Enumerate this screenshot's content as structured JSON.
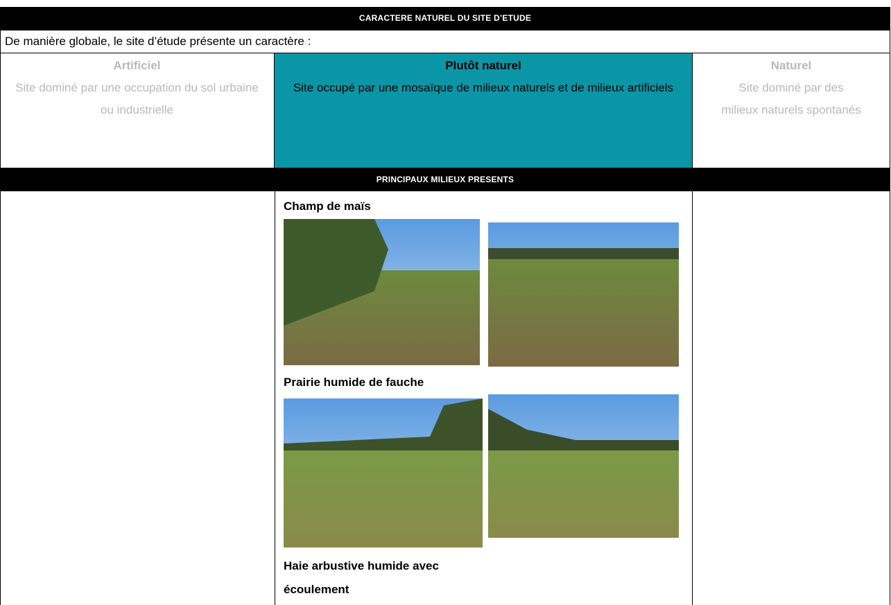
{
  "header": {
    "title": "CARACTERE NATUREL DU SITE D’ETUDE"
  },
  "intro": "De manière globale, le site d’étude présente un caractère :",
  "columns": [
    {
      "title": "Artificiel",
      "description": "Site dominé par une occupation du sol urbaine ou industrielle"
    },
    {
      "title": "Plutôt naturel",
      "description": "Site occupé par une mosaïque de milieux naturels et de milieux artificiels"
    },
    {
      "title": "Naturel",
      "description": "Site dominé par des milieux naturels spontanés"
    }
  ],
  "section_title": "PRINCIPAUX MILIEUX PRESENTS",
  "habitats": [
    "Champ de maïs",
    "Prairie humide de fauche",
    "Haie arbustive humide avec écoulement"
  ]
}
